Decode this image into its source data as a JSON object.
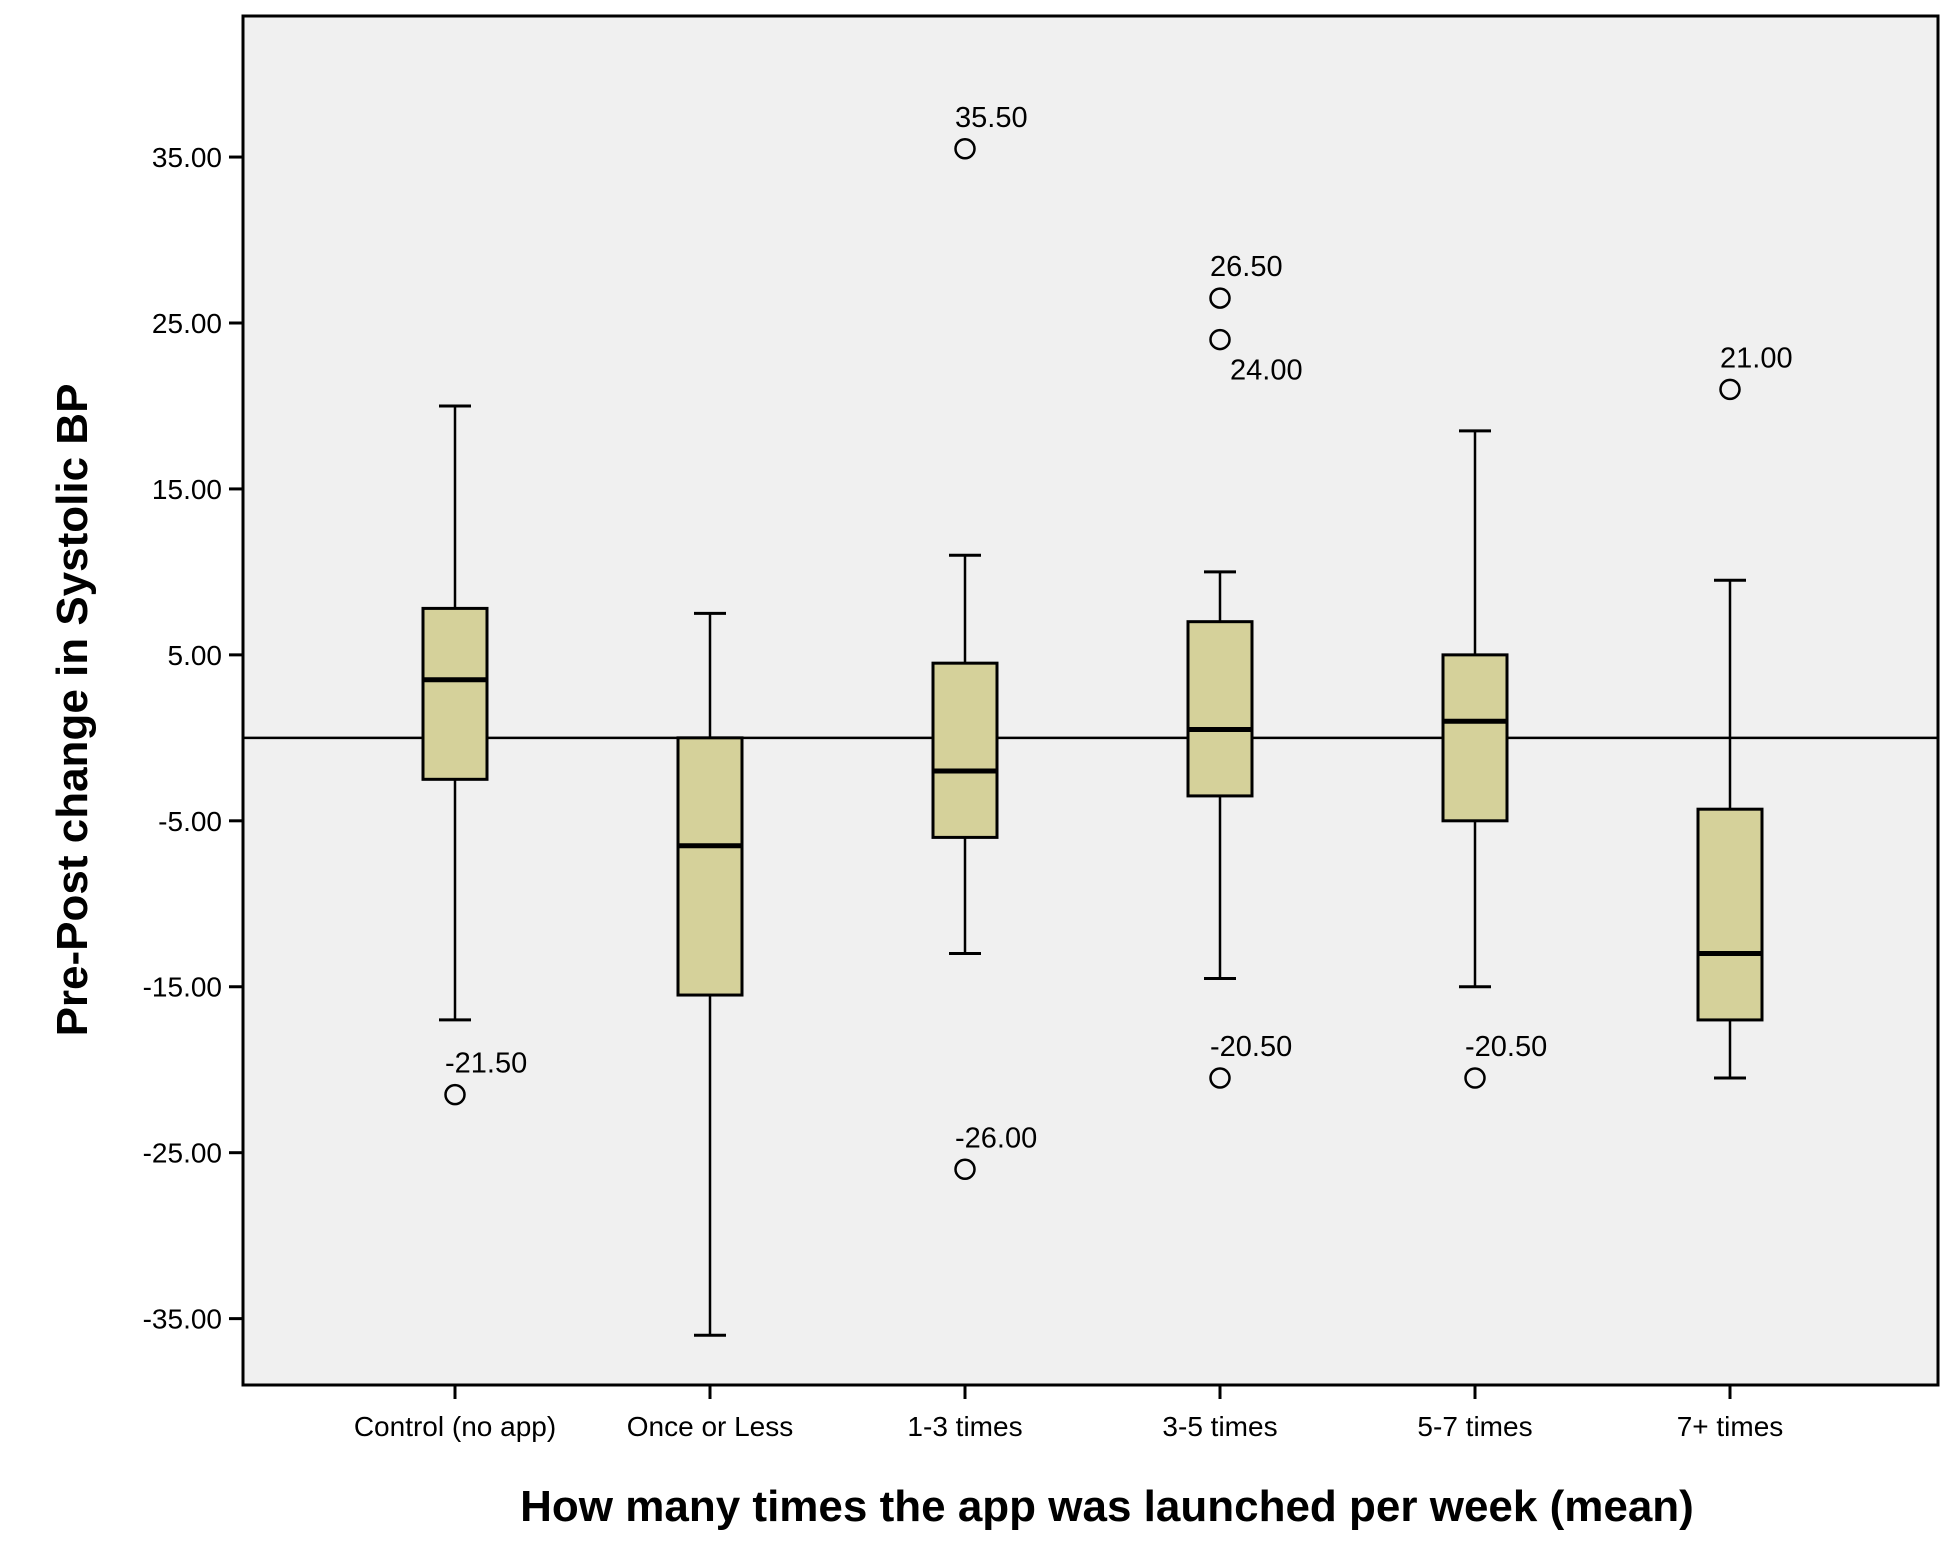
{
  "colors": {
    "plot_bg": "#f0f0f0",
    "box_fill": "#d5d19a",
    "stroke": "#000000"
  },
  "chart_data": {
    "type": "boxplot",
    "xlabel": "How many times the app was launched per week (mean)",
    "ylabel": "Pre-Post change in Systolic BP",
    "ylim": [
      -39,
      43.5
    ],
    "yticks": [
      35,
      25,
      15,
      5,
      -5,
      -15,
      -25,
      -35
    ],
    "ytick_labels": [
      "35.00",
      "25.00",
      "15.00",
      "5.00",
      "-5.00",
      "-15.00",
      "-25.00",
      "-35.00"
    ],
    "reference_line": 0,
    "grid": false,
    "categories": [
      "Control (no app)",
      "Once or Less",
      "1-3 times",
      "3-5 times",
      "5-7 times",
      "7+ times"
    ],
    "boxes": [
      {
        "whisker_low": -17,
        "q1": -2.5,
        "median": 3.5,
        "q3": 7.8,
        "whisker_high": 20,
        "outliers": [
          {
            "value": -21.5,
            "label": "-21.50"
          }
        ]
      },
      {
        "whisker_low": -36,
        "q1": -15.5,
        "median": -6.5,
        "q3": 0,
        "whisker_high": 7.5,
        "outliers": []
      },
      {
        "whisker_low": -13,
        "q1": -6,
        "median": -2,
        "q3": 4.5,
        "whisker_high": 11,
        "outliers": [
          {
            "value": 35.5,
            "label": "35.50"
          },
          {
            "value": -26,
            "label": "-26.00"
          }
        ]
      },
      {
        "whisker_low": -14.5,
        "q1": -3.5,
        "median": 0.5,
        "q3": 7,
        "whisker_high": 10,
        "outliers": [
          {
            "value": 26.5,
            "label": "26.50"
          },
          {
            "value": 24,
            "label": "24.00"
          },
          {
            "value": -20.5,
            "label": "-20.50"
          }
        ]
      },
      {
        "whisker_low": -15,
        "q1": -5,
        "median": 1,
        "q3": 5,
        "whisker_high": 18.5,
        "outliers": [
          {
            "value": -20.5,
            "label": "-20.50"
          }
        ]
      },
      {
        "whisker_low": -20.5,
        "q1": -17,
        "median": -13,
        "q3": -4.3,
        "whisker_high": 9.5,
        "outliers": [
          {
            "value": 21,
            "label": "21.00"
          }
        ]
      }
    ]
  }
}
